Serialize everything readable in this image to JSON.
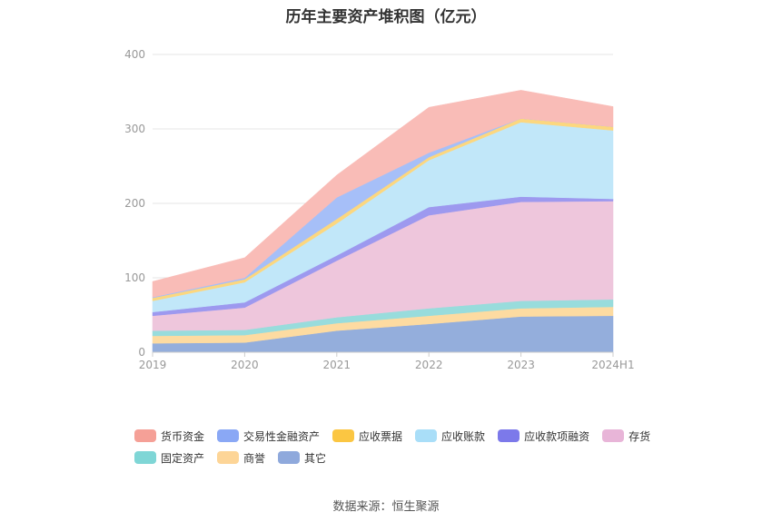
{
  "title": "历年主要资产堆积图（亿元）",
  "source": "数据来源：恒生聚源",
  "chart_data": {
    "type": "area",
    "stacked": true,
    "x": [
      "2019",
      "2020",
      "2021",
      "2022",
      "2023",
      "2024H1"
    ],
    "ylim": [
      0,
      400
    ],
    "yticks": [
      0,
      100,
      200,
      300,
      400
    ],
    "grid": true,
    "legend_position": "bottom",
    "series": [
      {
        "name": "其它",
        "color": "#94aedc",
        "values": [
          12,
          13,
          29,
          38,
          48,
          49
        ]
      },
      {
        "name": "商誉",
        "color": "#fddba1",
        "values": [
          10,
          10,
          10,
          11,
          11,
          12
        ]
      },
      {
        "name": "固定资产",
        "color": "#98dcdc",
        "values": [
          7,
          7,
          8,
          10,
          10,
          10
        ]
      },
      {
        "name": "存货",
        "color": "#eec6dc",
        "values": [
          20,
          30,
          76,
          125,
          133,
          132
        ]
      },
      {
        "name": "应收款项融资",
        "color": "#9d99ef",
        "values": [
          5,
          7,
          7,
          11,
          7,
          3
        ]
      },
      {
        "name": "应收账款",
        "color": "#c1e7f9",
        "values": [
          15,
          27,
          43,
          63,
          100,
          92
        ]
      },
      {
        "name": "应收票据",
        "color": "#fcd77f",
        "values": [
          4,
          4,
          6,
          4,
          5,
          5
        ]
      },
      {
        "name": "交易性金融资产",
        "color": "#a6bff8",
        "values": [
          1,
          2,
          29,
          6,
          0,
          0
        ]
      },
      {
        "name": "货币资金",
        "color": "#f9bcb7",
        "values": [
          21,
          27,
          30,
          61,
          38,
          27
        ]
      }
    ]
  },
  "legend": [
    {
      "label": "货币资金",
      "color": "#f5a097"
    },
    {
      "label": "交易性金融资产",
      "color": "#8aa8f5"
    },
    {
      "label": "应收票据",
      "color": "#fbc642"
    },
    {
      "label": "应收账款",
      "color": "#a9def8"
    },
    {
      "label": "应收款项融资",
      "color": "#7c79ea"
    },
    {
      "label": "存货",
      "color": "#e8b5d8"
    },
    {
      "label": "固定资产",
      "color": "#7fd6d6"
    },
    {
      "label": "商誉",
      "color": "#fdd597"
    },
    {
      "label": "其它",
      "color": "#8fa9dc"
    }
  ]
}
